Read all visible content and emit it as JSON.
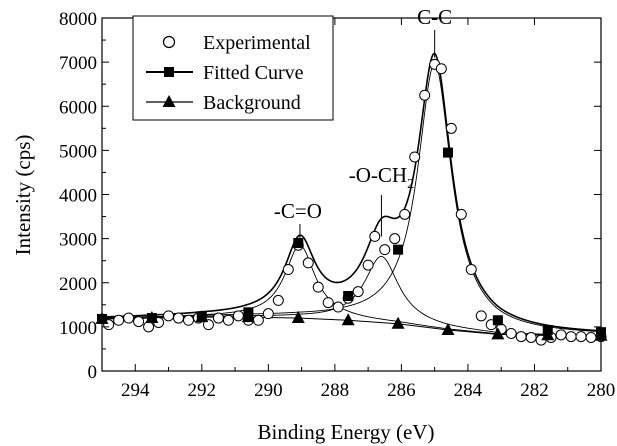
{
  "chart_data": {
    "type": "scatter",
    "title": "",
    "xlabel": "Binding Energy (eV)",
    "ylabel": "Intensity (cps)",
    "xlim": [
      295,
      280
    ],
    "ylim": [
      0,
      8000
    ],
    "x_reversed": true,
    "x_ticks": [
      294,
      292,
      290,
      288,
      286,
      284,
      282,
      280
    ],
    "y_ticks": [
      0,
      1000,
      2000,
      3000,
      4000,
      5000,
      6000,
      7000,
      8000
    ],
    "legend_placement": "top-left",
    "grid": false,
    "series": [
      {
        "name": "Experimental",
        "marker": "open-circle",
        "points": [
          [
            294.8,
            1050
          ],
          [
            294.5,
            1150
          ],
          [
            294.2,
            1200
          ],
          [
            293.9,
            1120
          ],
          [
            293.6,
            1000
          ],
          [
            293.3,
            1100
          ],
          [
            293.0,
            1250
          ],
          [
            292.7,
            1200
          ],
          [
            292.4,
            1150
          ],
          [
            292.1,
            1200
          ],
          [
            291.8,
            1050
          ],
          [
            291.5,
            1200
          ],
          [
            291.2,
            1150
          ],
          [
            290.9,
            1250
          ],
          [
            290.6,
            1150
          ],
          [
            290.3,
            1150
          ],
          [
            290.0,
            1300
          ],
          [
            289.7,
            1600
          ],
          [
            289.4,
            2300
          ],
          [
            289.1,
            2850
          ],
          [
            288.8,
            2450
          ],
          [
            288.5,
            1900
          ],
          [
            288.2,
            1550
          ],
          [
            287.9,
            1450
          ],
          [
            287.6,
            1650
          ],
          [
            287.3,
            1800
          ],
          [
            287.0,
            2400
          ],
          [
            286.8,
            3050
          ],
          [
            286.5,
            2750
          ],
          [
            286.2,
            3000
          ],
          [
            285.9,
            3550
          ],
          [
            285.6,
            4850
          ],
          [
            285.3,
            6250
          ],
          [
            285.0,
            6950
          ],
          [
            284.8,
            6850
          ],
          [
            284.5,
            5500
          ],
          [
            284.2,
            3550
          ],
          [
            283.9,
            2300
          ],
          [
            283.6,
            1250
          ],
          [
            283.3,
            1050
          ],
          [
            283.0,
            950
          ],
          [
            282.7,
            850
          ],
          [
            282.4,
            780
          ],
          [
            282.1,
            760
          ],
          [
            281.8,
            700
          ],
          [
            281.5,
            760
          ],
          [
            281.2,
            820
          ],
          [
            280.9,
            780
          ],
          [
            280.6,
            780
          ],
          [
            280.3,
            760
          ],
          [
            280.0,
            780
          ]
        ]
      },
      {
        "name": "Fitted Curve",
        "marker": "filled-square",
        "points": [
          [
            295.0,
            1180
          ],
          [
            293.5,
            1200
          ],
          [
            292.0,
            1240
          ],
          [
            290.6,
            1330
          ],
          [
            289.1,
            2900
          ],
          [
            287.6,
            1700
          ],
          [
            286.1,
            2750
          ],
          [
            284.6,
            4950
          ],
          [
            283.1,
            1150
          ],
          [
            281.6,
            930
          ],
          [
            280.0,
            880
          ]
        ]
      },
      {
        "name": "Background",
        "marker": "filled-triangle",
        "points": [
          [
            295.0,
            1180
          ],
          [
            293.5,
            1200
          ],
          [
            292.0,
            1220
          ],
          [
            290.6,
            1220
          ],
          [
            289.1,
            1200
          ],
          [
            287.6,
            1150
          ],
          [
            286.1,
            1070
          ],
          [
            284.6,
            930
          ],
          [
            283.1,
            830
          ],
          [
            281.6,
            810
          ],
          [
            280.0,
            800
          ]
        ]
      }
    ],
    "components": [
      {
        "center": 289.05,
        "height": 1650,
        "width": 0.55
      },
      {
        "center": 286.6,
        "height": 1500,
        "width": 0.62
      },
      {
        "center": 285.0,
        "height": 6000,
        "width": 0.62
      }
    ],
    "annotations": [
      {
        "text": "C-C",
        "x": 285.0,
        "y": 7100
      },
      {
        "text": "-O-CH",
        "subscript": "2",
        "x": 286.6,
        "y": 3050
      },
      {
        "text": "-C=O",
        "x": 289.05,
        "y": 2850
      }
    ]
  }
}
